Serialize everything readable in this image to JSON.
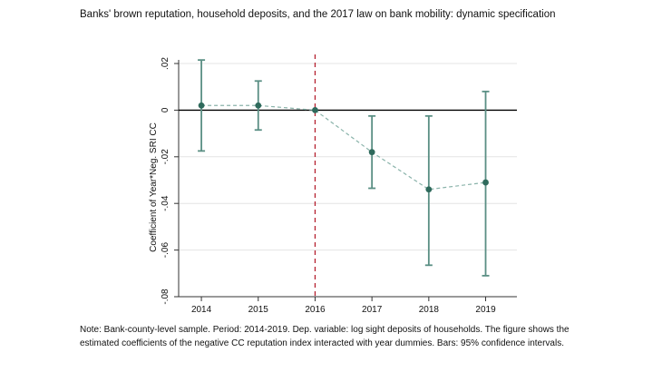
{
  "title": "Banks' brown reputation, household deposits, and the 2017 law on bank mobility: dynamic specification",
  "note": "Note: Bank-county-level sample. Period: 2014-2019. Dep. variable: log sight deposits of households. The figure shows the estimated coefficients of the negative CC reputation index interacted with year dummies. Bars: 95% confidence intervals.",
  "chart_data": {
    "type": "scatter",
    "subtype": "coefficient plot with confidence intervals",
    "x": [
      2014,
      2015,
      2016,
      2017,
      2018,
      2019
    ],
    "x_tick_labels": [
      "2014",
      "2015",
      "2016",
      "2017",
      "2018",
      "2019"
    ],
    "coefficients": [
      0.002,
      0.002,
      0.0,
      -0.018,
      -0.034,
      -0.031
    ],
    "ci_lower": [
      -0.0175,
      -0.0085,
      0.0,
      -0.0335,
      -0.0665,
      -0.071
    ],
    "ci_upper": [
      0.0215,
      0.0125,
      0.0,
      -0.0025,
      -0.0025,
      0.008
    ],
    "ylabel": "Coefficient of Year*Neg. SRI CC",
    "xlabel": "",
    "y_ticks": [
      0.02,
      0,
      -0.02,
      -0.04,
      -0.06,
      -0.08
    ],
    "y_tick_labels": [
      ".02",
      "0",
      "-.02",
      "-.04",
      "-.06",
      "-.08"
    ],
    "ylim": [
      -0.08,
      0.02
    ],
    "xlim": [
      2013.6,
      2019.55
    ],
    "reference_line_y": 0,
    "event_line_x": 2016,
    "grid": "horizontal",
    "colors": {
      "marker": "#2f6a5c",
      "bars": "#5a8f84",
      "connector": "#8ab3aa",
      "event_line": "#b5202e",
      "zero_line": "#000000",
      "grid": "#e4e4e4"
    }
  }
}
